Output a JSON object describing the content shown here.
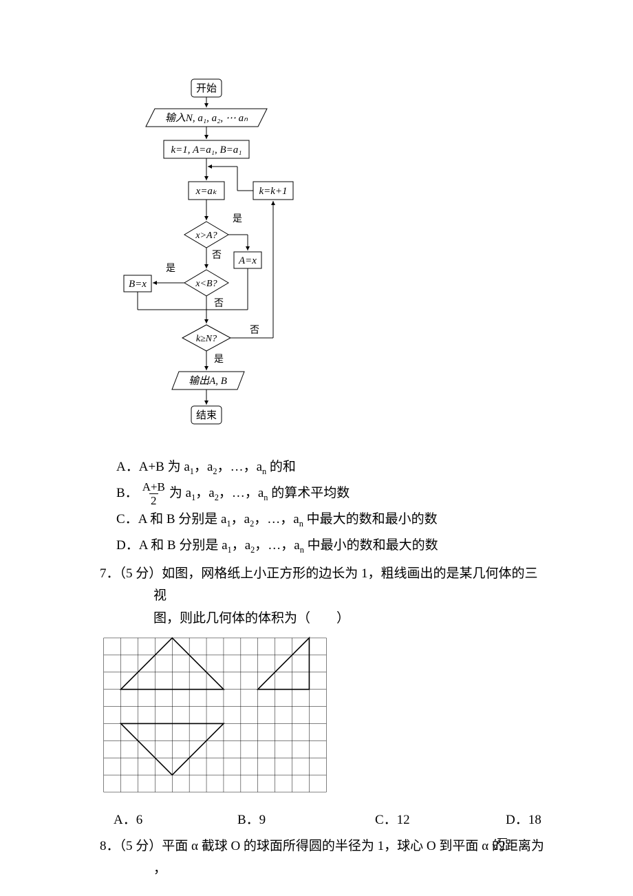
{
  "flowchart": {
    "nodes": {
      "start": "开始",
      "input": "输入N, a₁, a₂, ⋯ aₙ",
      "init": "k=1, A=a₁, B=a₁",
      "assign_x": "x=aₖ",
      "inc_k": "k=k+1",
      "cmp_A": "x>A?",
      "set_A": "A=x",
      "cmp_B": "x<B?",
      "set_B": "B=x",
      "cmp_N": "k≥N?",
      "output": "输出A, B",
      "end": "结束"
    },
    "edge_labels": {
      "yes": "是",
      "no": "否"
    },
    "font_size": 15,
    "stroke": "#000000",
    "fill": "#ffffff"
  },
  "options6": {
    "A_prefix": "A．",
    "A_text_1": "A+B 为 a",
    "A_text_2": "，a",
    "A_text_3": "，…，a",
    "A_text_4": " 的和",
    "B_prefix": "B．",
    "B_frac_num": "A+B",
    "B_frac_den": "2",
    "B_text_1": "为 a",
    "B_text_4": " 的算术平均数",
    "C_prefix": "C．",
    "C_text_1": "A 和 B 分别是 a",
    "C_text_end": " 中最大的数和最小的数",
    "D_prefix": "D．",
    "D_text_end": " 中最小的数和最大的数"
  },
  "q7": {
    "line1": "7．（5 分）如图，网格纸上小正方形的边长为 1，粗线画出的是某几何体的三视",
    "line2": "图，则此几何体的体积为（　　）",
    "answers": {
      "A": "A．6",
      "B": "B．9",
      "C": "C．12",
      "D": "D．18"
    }
  },
  "three_view": {
    "grid": {
      "cols": 13,
      "rows": 9,
      "cell": 25
    },
    "stroke": "#000000",
    "grid_stroke": "#000000",
    "grid_width": 0.5,
    "shape_width": 1.6,
    "shapes": [
      {
        "type": "triangle",
        "pts": [
          [
            1,
            3
          ],
          [
            4,
            0
          ],
          [
            7,
            3
          ]
        ]
      },
      {
        "type": "right_triangle",
        "pts": [
          [
            9,
            3
          ],
          [
            12,
            0
          ],
          [
            12,
            3
          ]
        ]
      },
      {
        "type": "triangle",
        "pts": [
          [
            1,
            5
          ],
          [
            7,
            5
          ],
          [
            4,
            8
          ]
        ]
      }
    ]
  },
  "q8": {
    "line1_a": "8．（5 分）平面 α 截球 O 的球面所得圆的半径为 1，球心 O 到平面 α 的距离为",
    "sqrt_val": "2",
    "line1_b": "，"
  }
}
